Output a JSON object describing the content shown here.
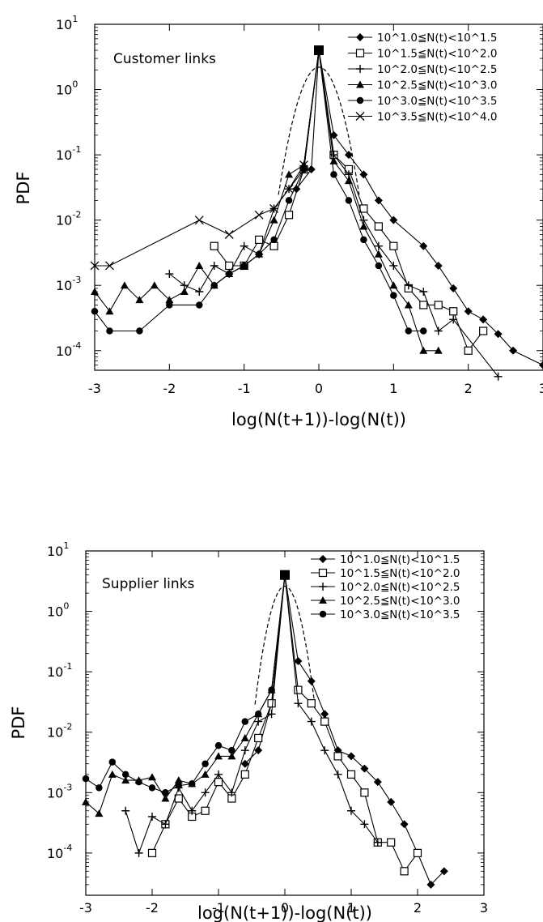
{
  "chart_data": [
    {
      "type": "line",
      "title": "",
      "annotation": "Customer links",
      "xlabel": "log(N(t+1))-log(N(t))",
      "ylabel": "PDF",
      "xlim": [
        -3,
        3
      ],
      "ylim": [
        5e-05,
        10
      ],
      "yscale": "log",
      "grid": false,
      "legend_position": "top-right",
      "xticks": [
        -3,
        -2,
        -1,
        0,
        1,
        2,
        3
      ],
      "xtick_labels": [
        "-3",
        "-2",
        "-1",
        "0",
        "1",
        "2",
        "3"
      ],
      "yticks": [
        10,
        1,
        0.1,
        0.01,
        0.001,
        0.0001
      ],
      "ytick_exponents": [
        "1",
        "0",
        "-1",
        "-2",
        "-3",
        "-4"
      ],
      "ytick_base": "10",
      "series": [
        {
          "name": "10^1.0≦N(t)<10^1.5",
          "marker": "diamond",
          "x": [
            -0.3,
            -0.1,
            0.0,
            0.2,
            0.4,
            0.6,
            0.8,
            1.0,
            1.4,
            1.6,
            1.8,
            2.0,
            2.2,
            2.4,
            2.6,
            3.0
          ],
          "y": [
            0.03,
            0.06,
            4.0,
            0.2,
            0.1,
            0.05,
            0.02,
            0.01,
            0.004,
            0.002,
            0.0009,
            0.0004,
            0.0003,
            0.00018,
            0.0001,
            6e-05
          ]
        },
        {
          "name": "10^1.5≦N(t)<10^2.0",
          "marker": "square-open",
          "x": [
            -1.4,
            -1.2,
            -1.0,
            -0.8,
            -0.6,
            -0.4,
            -0.2,
            0.0,
            0.2,
            0.4,
            0.6,
            0.8,
            1.0,
            1.2,
            1.4,
            1.6,
            1.8,
            2.0,
            2.2
          ],
          "y": [
            0.004,
            0.002,
            0.002,
            0.005,
            0.004,
            0.012,
            0.06,
            4.0,
            0.1,
            0.06,
            0.015,
            0.008,
            0.004,
            0.0009,
            0.0005,
            0.0005,
            0.0004,
            0.0001,
            0.0002
          ]
        },
        {
          "name": "10^2.0≦N(t)<10^2.5",
          "marker": "plus",
          "x": [
            -2.0,
            -1.8,
            -1.6,
            -1.4,
            -1.2,
            -1.0,
            -0.8,
            -0.6,
            -0.4,
            -0.2,
            0.0,
            0.2,
            0.4,
            0.6,
            0.8,
            1.0,
            1.2,
            1.4,
            1.6,
            1.8,
            2.4
          ],
          "y": [
            0.0015,
            0.001,
            0.0008,
            0.002,
            0.0015,
            0.004,
            0.003,
            0.015,
            0.03,
            0.06,
            4.0,
            0.1,
            0.05,
            0.01,
            0.004,
            0.002,
            0.001,
            0.0008,
            0.0002,
            0.0003,
            4e-05
          ]
        },
        {
          "name": "10^2.5≦N(t)<10^3.0",
          "marker": "triangle",
          "x": [
            -3.0,
            -2.8,
            -2.6,
            -2.4,
            -2.2,
            -2.0,
            -1.8,
            -1.6,
            -1.4,
            -1.2,
            -1.0,
            -0.8,
            -0.6,
            -0.4,
            -0.2,
            0.0,
            0.2,
            0.4,
            0.6,
            0.8,
            1.0,
            1.2,
            1.4,
            1.6
          ],
          "y": [
            0.0008,
            0.0004,
            0.001,
            0.0006,
            0.001,
            0.0006,
            0.0008,
            0.002,
            0.001,
            0.0015,
            0.002,
            0.003,
            0.01,
            0.05,
            0.07,
            4.0,
            0.08,
            0.04,
            0.008,
            0.003,
            0.001,
            0.0005,
            0.0001,
            0.0001
          ]
        },
        {
          "name": "10^3.0≦N(t)<10^3.5",
          "marker": "circle",
          "x": [
            -3.0,
            -2.8,
            -2.4,
            -2.0,
            -1.6,
            -1.4,
            -1.2,
            -1.0,
            -0.8,
            -0.6,
            -0.4,
            -0.2,
            0.0,
            0.2,
            0.4,
            0.6,
            0.8,
            1.0,
            1.2,
            1.4
          ],
          "y": [
            0.0004,
            0.0002,
            0.0002,
            0.0005,
            0.0005,
            0.001,
            0.0015,
            0.002,
            0.003,
            0.005,
            0.02,
            0.06,
            4.0,
            0.05,
            0.02,
            0.005,
            0.002,
            0.0007,
            0.0002,
            0.0002
          ]
        },
        {
          "name": "10^3.5≦N(t)<10^4.0",
          "marker": "cross",
          "x": [
            -3.0,
            -2.8,
            -1.6,
            -1.2,
            -0.8,
            -0.6,
            -0.4,
            -0.2,
            0.0
          ],
          "y": [
            0.002,
            0.002,
            0.01,
            0.006,
            0.012,
            0.015,
            0.03,
            0.07,
            4.0
          ]
        }
      ],
      "reference_curve": {
        "style": "dashed",
        "mean": 0,
        "sigma": 0.18,
        "peak": 2.2
      }
    },
    {
      "type": "line",
      "title": "",
      "annotation": "Supplier links",
      "xlabel": "log(N(t+1))-log(N(t))",
      "ylabel": "PDF",
      "xlim": [
        -3,
        3
      ],
      "ylim": [
        2e-05,
        10
      ],
      "yscale": "log",
      "grid": false,
      "legend_position": "top-right",
      "xticks": [
        -3,
        -2,
        -1,
        0,
        1,
        2,
        3
      ],
      "xtick_labels": [
        "-3",
        "-2",
        "-1",
        "0",
        "1",
        "2",
        "3"
      ],
      "yticks": [
        10,
        1,
        0.1,
        0.01,
        0.001,
        0.0001
      ],
      "ytick_exponents": [
        "1",
        "0",
        "-1",
        "-2",
        "-3",
        "-4"
      ],
      "ytick_base": "10",
      "series": [
        {
          "name": "10^1.0≦N(t)<10^1.5",
          "marker": "diamond",
          "x": [
            -0.6,
            -0.4,
            -0.2,
            0.0,
            0.2,
            0.4,
            0.6,
            0.8,
            1.0,
            1.2,
            1.4,
            1.6,
            1.8,
            2.0,
            2.2,
            2.4
          ],
          "y": [
            0.003,
            0.005,
            0.03,
            4.0,
            0.15,
            0.07,
            0.02,
            0.005,
            0.004,
            0.0025,
            0.0015,
            0.0007,
            0.0003,
            0.0001,
            3e-05,
            5e-05
          ]
        },
        {
          "name": "10^1.5≦N(t)<10^2.0",
          "marker": "square-open",
          "x": [
            -2.0,
            -1.8,
            -1.6,
            -1.4,
            -1.2,
            -1.0,
            -0.8,
            -0.6,
            -0.4,
            -0.2,
            0.0,
            0.2,
            0.4,
            0.6,
            0.8,
            1.0,
            1.2,
            1.4,
            1.6,
            1.8,
            2.0
          ],
          "y": [
            0.0001,
            0.0003,
            0.0008,
            0.0004,
            0.0005,
            0.0015,
            0.0008,
            0.002,
            0.008,
            0.03,
            4.0,
            0.05,
            0.03,
            0.015,
            0.004,
            0.002,
            0.001,
            0.00015,
            0.00015,
            5e-05,
            0.0001
          ]
        },
        {
          "name": "10^2.0≦N(t)<10^2.5",
          "marker": "plus",
          "x": [
            -2.4,
            -2.2,
            -2.0,
            -1.8,
            -1.6,
            -1.4,
            -1.2,
            -1.0,
            -0.8,
            -0.6,
            -0.4,
            -0.2,
            0.0,
            0.2,
            0.4,
            0.6,
            0.8,
            1.0,
            1.2,
            1.4
          ],
          "y": [
            0.0005,
            0.0001,
            0.0004,
            0.0003,
            0.0012,
            0.0005,
            0.001,
            0.002,
            0.001,
            0.005,
            0.015,
            0.02,
            4.0,
            0.03,
            0.015,
            0.005,
            0.002,
            0.0005,
            0.0003,
            0.00015
          ]
        },
        {
          "name": "10^2.5≦N(t)<10^3.0",
          "marker": "triangle",
          "x": [
            -3.0,
            -2.8,
            -2.6,
            -2.4,
            -2.2,
            -2.0,
            -1.8,
            -1.6,
            -1.4,
            -1.2,
            -1.0,
            -0.8,
            -0.6,
            -0.4,
            -0.2,
            0.0
          ],
          "y": [
            0.0007,
            0.00045,
            0.002,
            0.0016,
            0.0016,
            0.0018,
            0.0008,
            0.0016,
            0.0014,
            0.002,
            0.004,
            0.004,
            0.008,
            0.02,
            0.05,
            4.0
          ]
        },
        {
          "name": "10^3.0≦N(t)<10^3.5",
          "marker": "circle",
          "x": [
            -3.0,
            -2.8,
            -2.6,
            -2.4,
            -2.2,
            -2.0,
            -1.8,
            -1.6,
            -1.4,
            -1.2,
            -1.0,
            -0.8,
            -0.6,
            -0.4,
            -0.2,
            0.0
          ],
          "y": [
            0.0017,
            0.0012,
            0.0032,
            0.002,
            0.0015,
            0.0012,
            0.001,
            0.0013,
            0.0014,
            0.003,
            0.006,
            0.005,
            0.015,
            0.02,
            0.05,
            4.0
          ]
        }
      ],
      "reference_curve": {
        "style": "dashed",
        "mean": 0,
        "sigma": 0.15,
        "peak": 2.6
      }
    }
  ]
}
